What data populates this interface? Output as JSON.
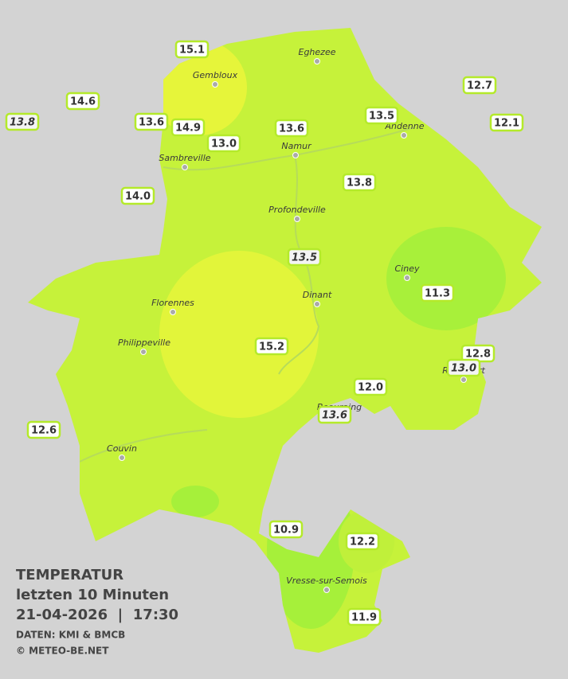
{
  "header": {
    "title": "TEMPERATUR",
    "subtitle": "letzten 10 Minuten",
    "datetime": "21-04-2026  |  17:30",
    "source": "DATEN: KMI & BMCB",
    "copyright": "© METEO-BE.NET"
  },
  "cities": [
    "Eghezee",
    "Gembloux",
    "Andenne",
    "Namur",
    "Sambreville",
    "Profondeville",
    "Ciney",
    "Dinant",
    "Florennes",
    "Philippeville",
    "Rochefort",
    "Beauraing",
    "Couvin",
    "Vresse-sur-Semois"
  ],
  "stations": [
    {
      "label": "15.1"
    },
    {
      "label": "14.6"
    },
    {
      "label": "13.8",
      "italic": true
    },
    {
      "label": "13.6"
    },
    {
      "label": "14.9"
    },
    {
      "label": "13.0"
    },
    {
      "label": "13.6"
    },
    {
      "label": "13.5"
    },
    {
      "label": "12.7"
    },
    {
      "label": "12.1"
    },
    {
      "label": "14.0"
    },
    {
      "label": "13.8"
    },
    {
      "label": "13.5",
      "italic": true
    },
    {
      "label": "11.3"
    },
    {
      "label": "15.2"
    },
    {
      "label": "12.8"
    },
    {
      "label": "13.0",
      "italic": true
    },
    {
      "label": "12.0"
    },
    {
      "label": "13.6",
      "italic": true
    },
    {
      "label": "12.6"
    },
    {
      "label": "10.9"
    },
    {
      "label": "12.2"
    },
    {
      "label": "11.9"
    }
  ]
}
